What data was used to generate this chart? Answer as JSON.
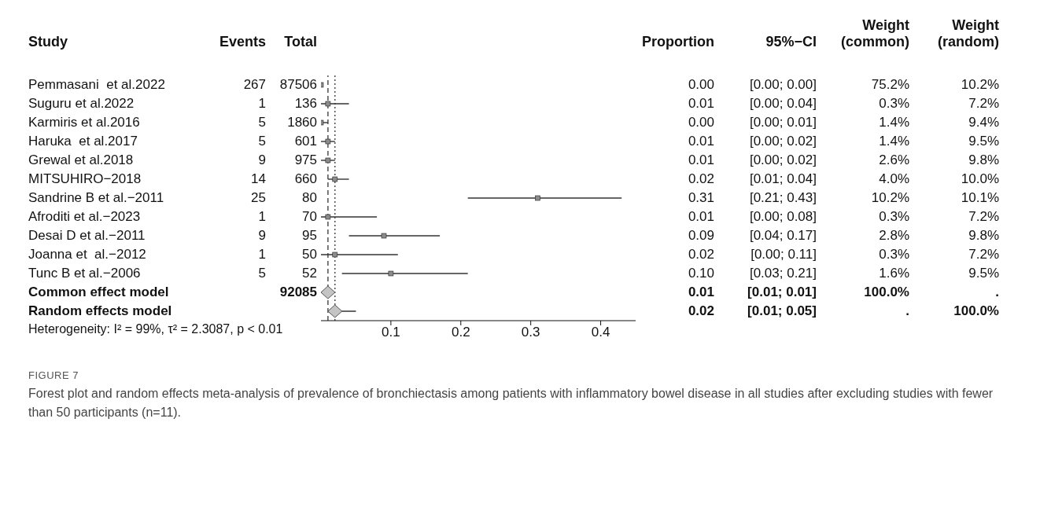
{
  "chart_data": [
    {
      "type": "scatter",
      "orientation": "horizontal",
      "categories": [
        null,
        null,
        null,
        null,
        null,
        null,
        null,
        null,
        null,
        null,
        null,
        null,
        null
      ],
      "series": [
        {
          "color": "#8c8c8c",
          "values": [
            0.0,
            0.01,
            0.0,
            0.01,
            0.01,
            0.02,
            0.31,
            0.01,
            0.09,
            0.02,
            0.1,
            null,
            null
          ],
          "errors": [
            [
              0.0,
              0.0
            ],
            [
              0.0,
              0.04
            ],
            [
              0.0,
              0.01
            ],
            [
              0.0,
              0.02
            ],
            [
              0.0,
              0.02
            ],
            [
              0.01,
              0.04
            ],
            [
              0.21,
              0.43
            ],
            [
              0.0,
              0.08
            ],
            [
              0.04,
              0.17
            ],
            [
              0.0,
              0.11
            ],
            [
              0.03,
              0.21
            ],
            null,
            null
          ]
        },
        {
          "marker": "diamond",
          "color": "#c4c4c4",
          "values": [
            null,
            null,
            null,
            null,
            null,
            null,
            null,
            null,
            null,
            null,
            null,
            0.01,
            0.02
          ],
          "errors": [
            null,
            null,
            null,
            null,
            null,
            null,
            null,
            null,
            null,
            null,
            null,
            [
              0.01,
              0.01
            ],
            [
              0.01,
              0.05
            ]
          ]
        }
      ],
      "marker": "square",
      "xlim": [
        0,
        0.45
      ],
      "xticks": [
        0.1,
        0.2,
        0.3,
        0.4
      ],
      "ref_lines": [
        {
          "axis": "x",
          "value": 0.01,
          "line_style": "dashed"
        },
        {
          "axis": "x",
          "value": 0.02,
          "line_style": "dotted"
        }
      ],
      "annotations": [
        "Heterogeneity: I² = 99%, τ² = 2.3087, p < 0.01",
        "FIGURE 7",
        "Forest plot and random effects meta-analysis of prevalence of bronchiectasis among patients with inflammatory bowel disease in all studies after excluding studies with fewer than 50 participants (n=11)."
      ]
    },
    {
      "type": "other",
      "title": "Study",
      "annotations": [
        "Pemmasani  et al.2022",
        "Suguru et al.2022",
        "Karmiris et al.2016",
        "Haruka  et al.2017",
        "Grewal et al.2018",
        "MITSUHIRO−2018",
        "Sandrine B et al.−2011",
        "Afroditi et al.−2023",
        "Desai D et al.−2011",
        "Joanna et  al.−2012",
        "Tunc B et al.−2006",
        "Common effect model",
        "Random effects model"
      ]
    },
    {
      "type": "other",
      "title": "Events",
      "annotations": [
        "267",
        "1",
        "5",
        "5",
        "9",
        "14",
        "25",
        "1",
        "9",
        "1",
        "5"
      ]
    },
    {
      "type": "other",
      "title": "Total",
      "annotations": [
        "87506",
        "136",
        "1860",
        "601",
        "975",
        "660",
        "80",
        "70",
        "95",
        "50",
        "52",
        "92085"
      ]
    },
    {
      "type": "other",
      "title": "Proportion",
      "annotations": [
        "0.00",
        "0.01",
        "0.00",
        "0.01",
        "0.01",
        "0.02",
        "0.31",
        "0.01",
        "0.09",
        "0.02",
        "0.10",
        "0.01",
        "0.02"
      ]
    },
    {
      "type": "other",
      "title": "95%−CI",
      "annotations": [
        "[0.00; 0.00]",
        "[0.00; 0.04]",
        "[0.00; 0.01]",
        "[0.00; 0.02]",
        "[0.00; 0.02]",
        "[0.01; 0.04]",
        "[0.21; 0.43]",
        "[0.00; 0.08]",
        "[0.04; 0.17]",
        "[0.00; 0.11]",
        "[0.03; 0.21]",
        "[0.01; 0.01]",
        "[0.01; 0.05]"
      ]
    },
    {
      "type": "other",
      "title": "Weight (common)",
      "annotations": [
        "75.2%",
        "0.3%",
        "1.4%",
        "1.4%",
        "2.6%",
        "4.0%",
        "10.2%",
        "0.3%",
        "2.8%",
        "0.3%",
        "1.6%",
        "100.0%",
        "."
      ]
    },
    {
      "type": "other",
      "title": "Weight (random)",
      "annotations": [
        "10.2%",
        "7.2%",
        "9.4%",
        "9.5%",
        "9.8%",
        "10.0%",
        "10.1%",
        "7.2%",
        "9.8%",
        "7.2%",
        "9.5%",
        ".",
        "100.0%"
      ]
    }
  ]
}
